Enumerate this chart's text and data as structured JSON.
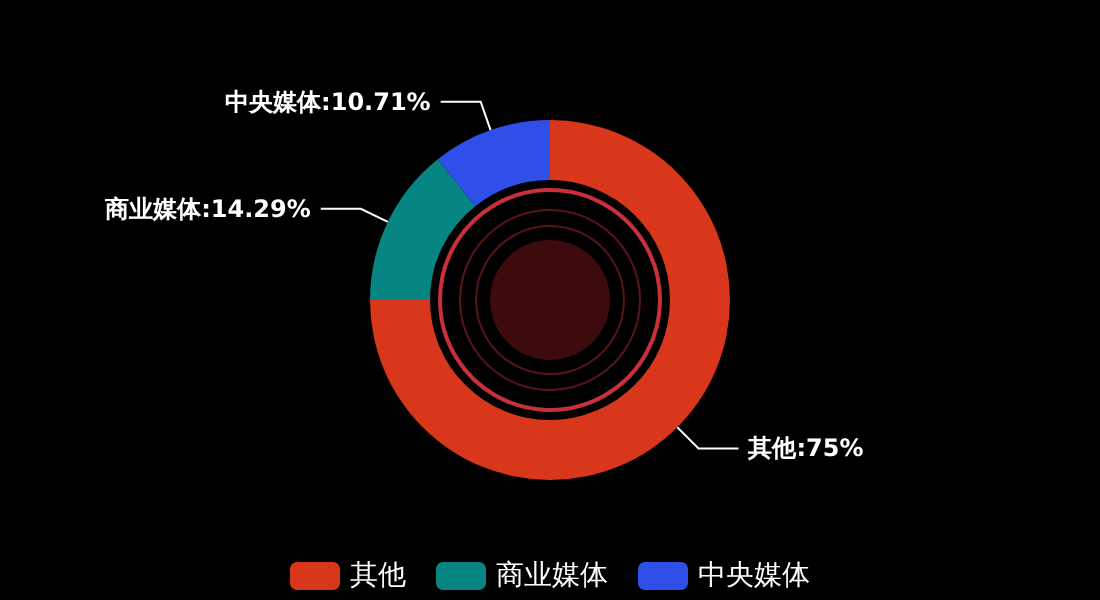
{
  "chart_data": {
    "type": "donut",
    "categories": [
      "其他",
      "商业媒体",
      "中央媒体"
    ],
    "values": [
      75,
      14.29,
      10.71
    ],
    "colors": [
      "#d9371c",
      "#078583",
      "#2f4fe8"
    ],
    "value_labels": [
      ":75%",
      ":14.29%",
      ":10.71%"
    ],
    "legend": "bottom"
  }
}
